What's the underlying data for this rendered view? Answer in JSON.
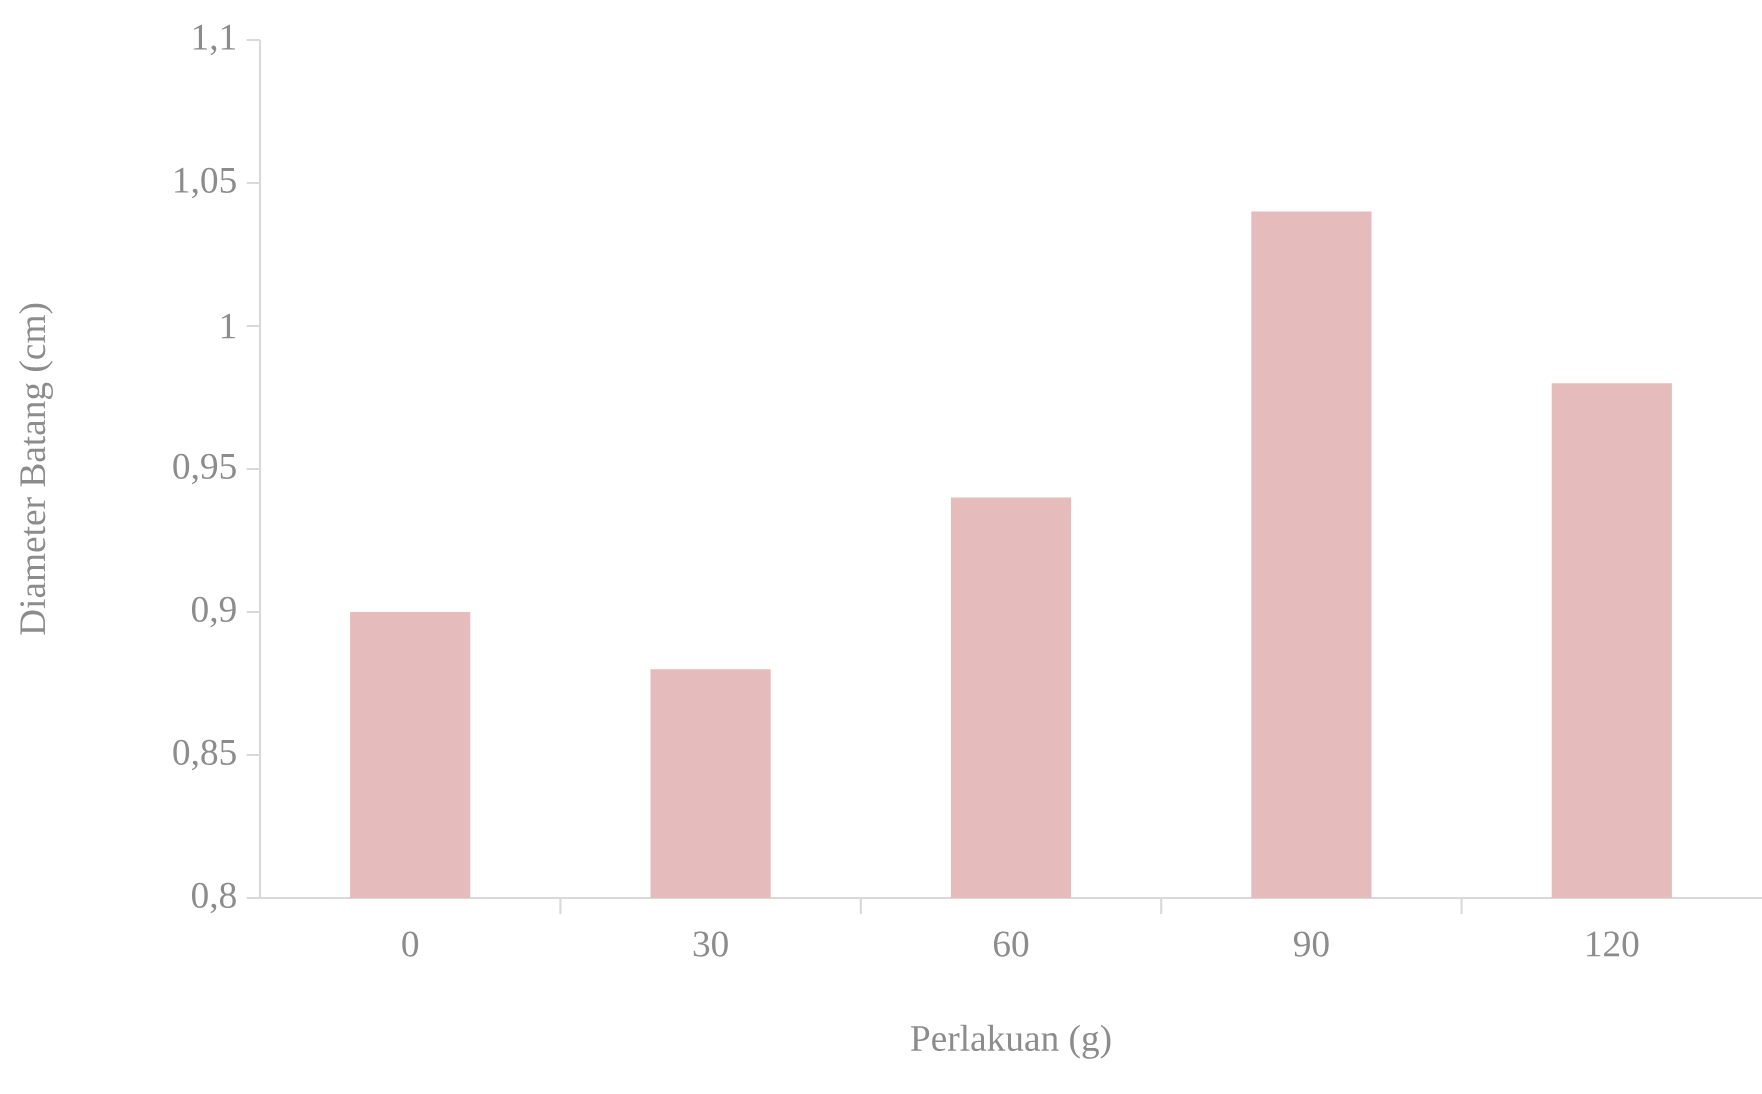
{
  "chart_data": {
    "type": "bar",
    "categories": [
      "0",
      "30",
      "60",
      "90",
      "120"
    ],
    "values": [
      0.9,
      0.88,
      0.94,
      1.04,
      0.98
    ],
    "color": "#e6bbbb",
    "xlabel": "Perlakuan (g)",
    "ylabel": "Diameter Batang (cm)",
    "ylim": [
      0.8,
      1.1
    ],
    "yticks": [
      {
        "value": 0.8,
        "label": "0,8"
      },
      {
        "value": 0.85,
        "label": "0,85"
      },
      {
        "value": 0.9,
        "label": "0,9"
      },
      {
        "value": 0.95,
        "label": "0,95"
      },
      {
        "value": 1,
        "label": "1"
      },
      {
        "value": 1.05,
        "label": "1,05"
      },
      {
        "value": 1.1,
        "label": "1,1"
      }
    ]
  }
}
